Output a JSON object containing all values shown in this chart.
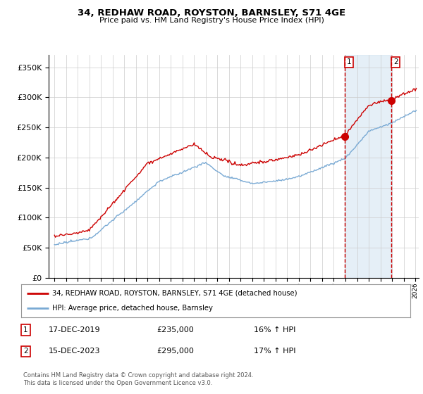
{
  "title": "34, REDHAW ROAD, ROYSTON, BARNSLEY, S71 4GE",
  "subtitle": "Price paid vs. HM Land Registry's House Price Index (HPI)",
  "hpi_label": "HPI: Average price, detached house, Barnsley",
  "property_label": "34, REDHAW ROAD, ROYSTON, BARNSLEY, S71 4GE (detached house)",
  "transaction1_date": "17-DEC-2019",
  "transaction1_price": 235000,
  "transaction1_hpi": "16% ↑ HPI",
  "transaction2_date": "15-DEC-2023",
  "transaction2_price": 295000,
  "transaction2_hpi": "17% ↑ HPI",
  "footer": "Contains HM Land Registry data © Crown copyright and database right 2024.\nThis data is licensed under the Open Government Licence v3.0.",
  "ylim": [
    0,
    370000
  ],
  "yticks": [
    0,
    50000,
    100000,
    150000,
    200000,
    250000,
    300000,
    350000
  ],
  "hpi_color": "#7aaad4",
  "property_color": "#cc0000",
  "dashed_color": "#cc0000",
  "background_color": "#ffffff",
  "grid_color": "#cccccc",
  "transaction1_x": 2019.958,
  "transaction2_x": 2023.958,
  "xlim_left": 1994.5,
  "xlim_right": 2026.3
}
